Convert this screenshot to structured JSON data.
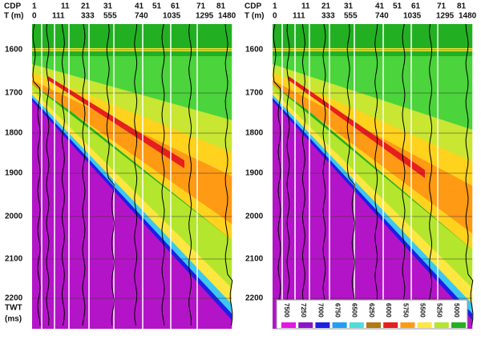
{
  "header": {
    "cdp_label": "CDP",
    "t_label": "T (m)"
  },
  "cdp": [
    "1",
    "11",
    "21",
    "31",
    "41",
    "51",
    "61",
    "71",
    "81"
  ],
  "t": [
    "0",
    "111",
    "333",
    "555",
    "740",
    "1035",
    "1295",
    "1480"
  ],
  "twt_ticks": [
    "1600",
    "1700",
    "1800",
    "1900",
    "2000",
    "2100",
    "2200"
  ],
  "axis_label": [
    "TWT",
    "(ms)"
  ],
  "colorbar": [
    "7500",
    "7250",
    "7000",
    "6750",
    "6500",
    "6250",
    "6000",
    "5750",
    "5500",
    "5250",
    "5000"
  ]
}
